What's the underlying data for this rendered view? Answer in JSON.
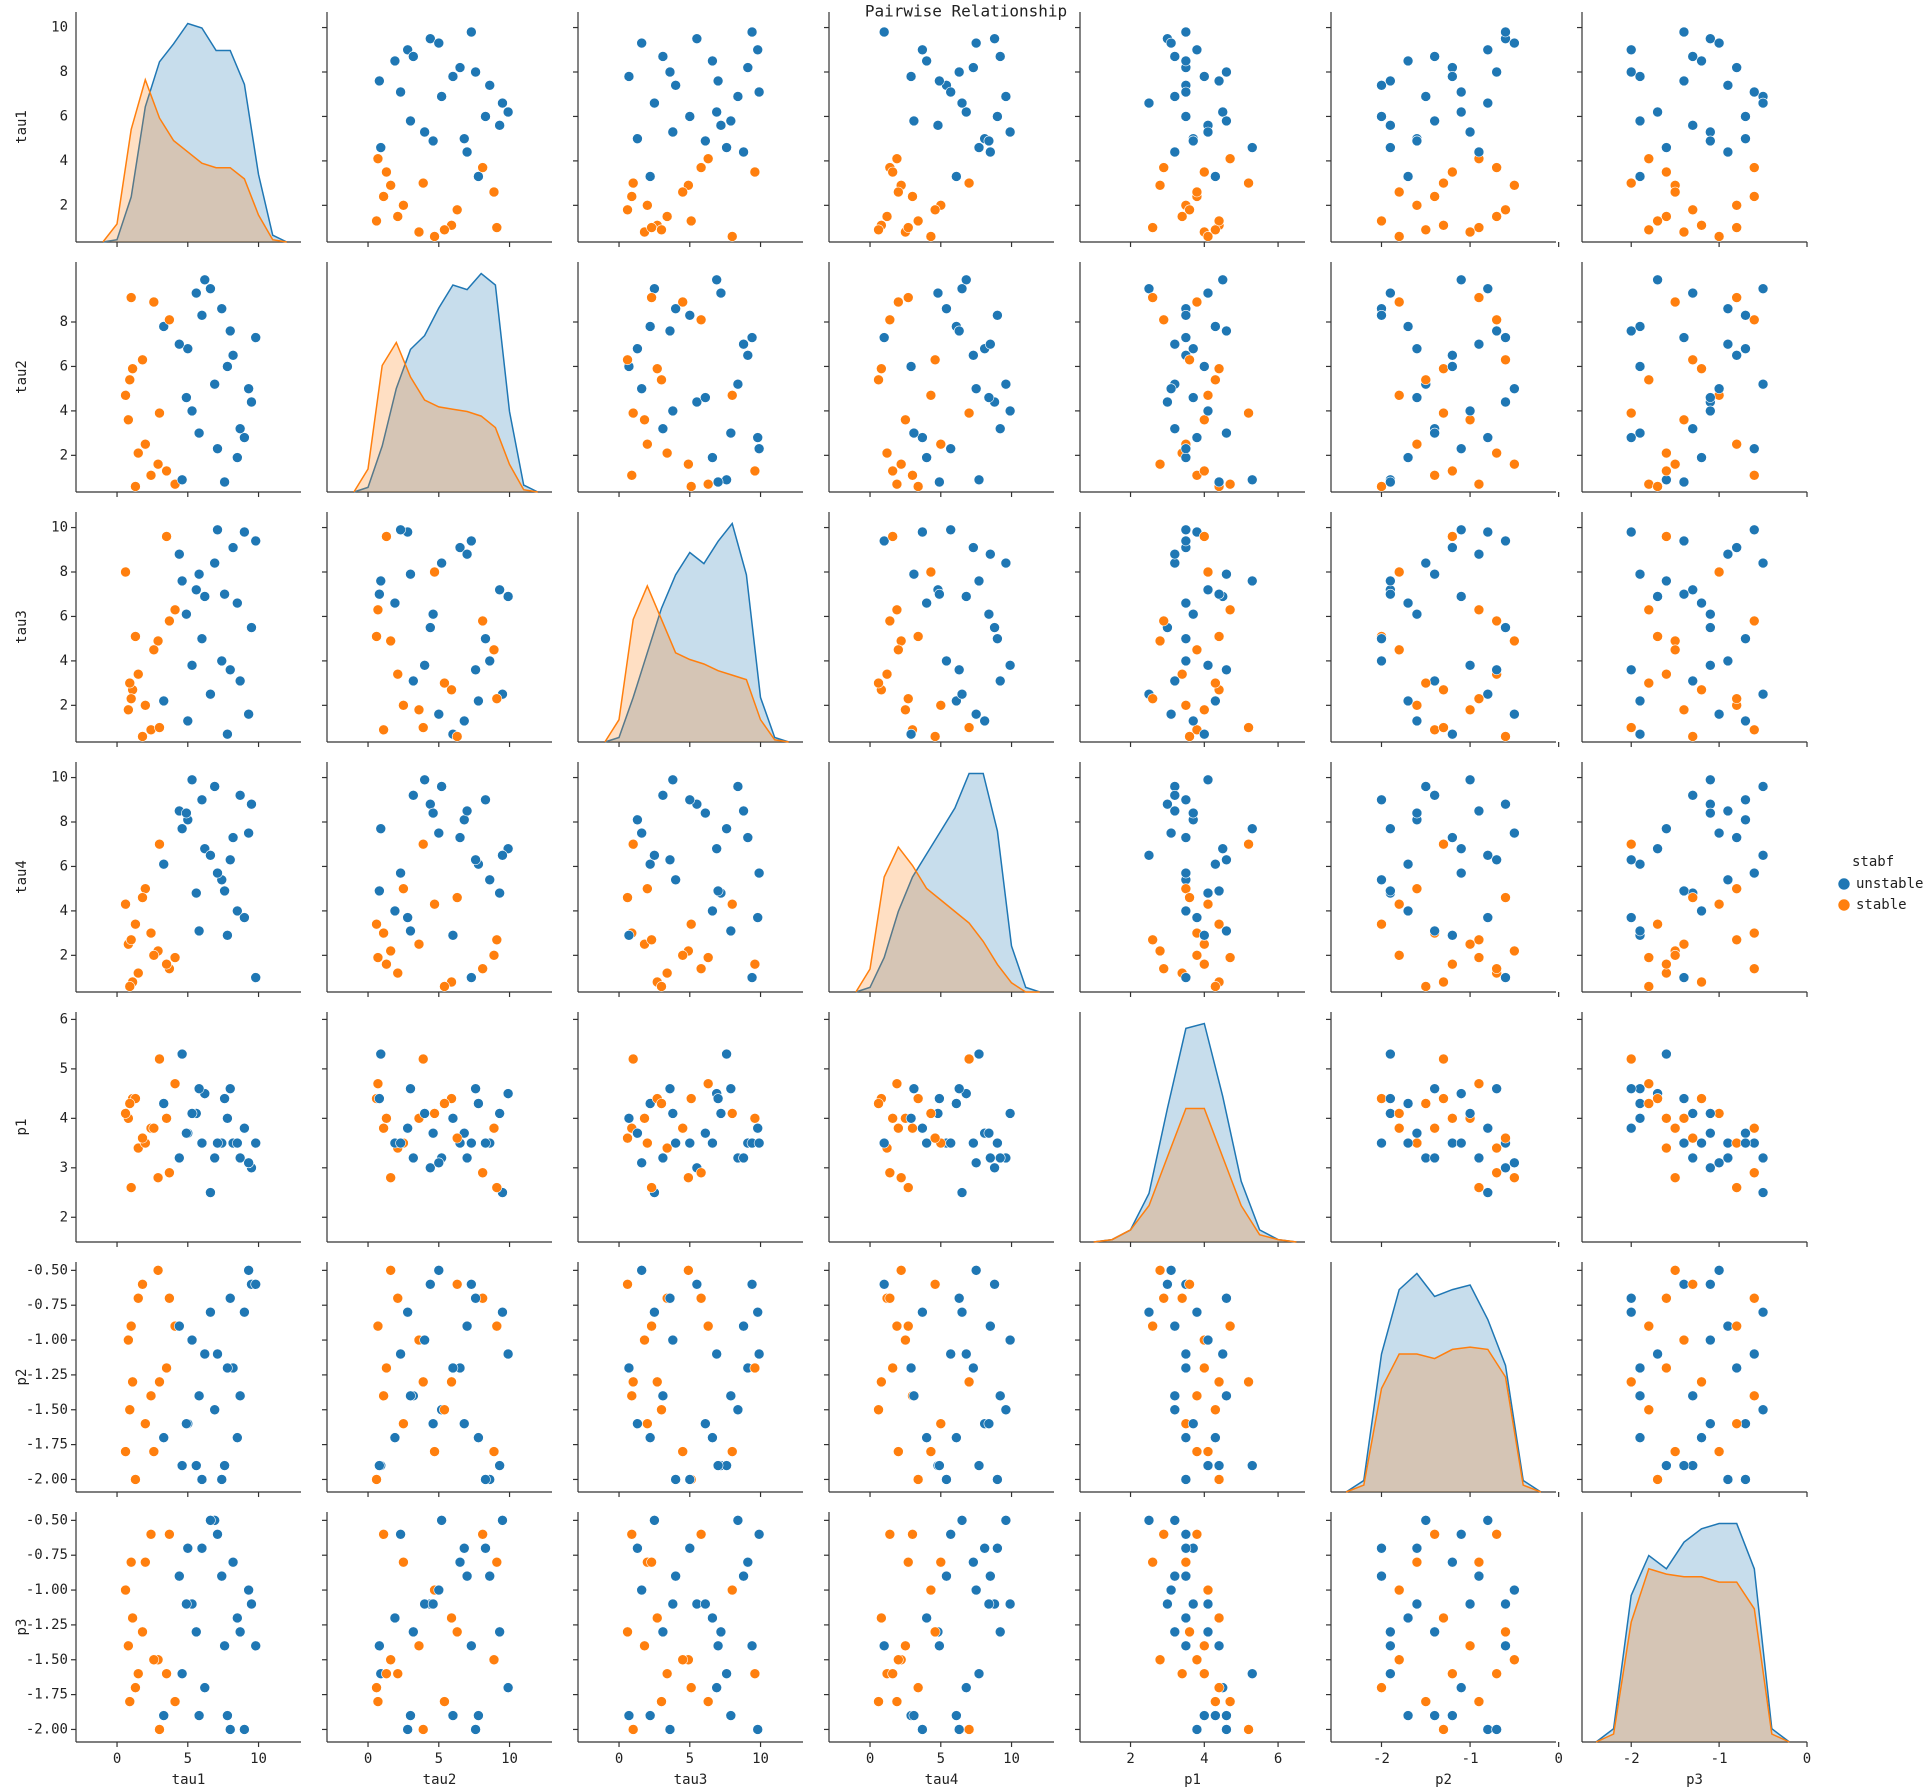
{
  "chart_data": {
    "type": "pairplot",
    "title": "Pairwise Relationship",
    "legend_title": "stabf",
    "series": [
      {
        "name": "unstable",
        "color": "#1f77b4"
      },
      {
        "name": "stable",
        "color": "#ff7f0e"
      }
    ],
    "stabf": [
      "unstable",
      "stable",
      "unstable",
      "stable",
      "unstable",
      "unstable",
      "stable",
      "unstable",
      "stable",
      "unstable",
      "stable",
      "unstable",
      "unstable",
      "stable",
      "unstable",
      "stable",
      "unstable",
      "stable",
      "unstable",
      "unstable",
      "stable",
      "unstable",
      "unstable",
      "stable",
      "unstable",
      "stable",
      "unstable",
      "unstable",
      "stable",
      "unstable",
      "stable",
      "unstable",
      "unstable",
      "stable",
      "unstable",
      "stable",
      "unstable",
      "unstable",
      "stable",
      "unstable"
    ],
    "variables": [
      {
        "name": "tau1",
        "xlim": [
          -2.9,
          13
        ],
        "xticks": [
          0,
          5,
          10
        ],
        "ylim": [
          0.35,
          10.7
        ],
        "yticks": [
          2,
          4,
          6,
          8,
          10
        ],
        "values": [
          8.2,
          1.5,
          5.6,
          2.4,
          9.5,
          3.3,
          0.8,
          6.9,
          4.1,
          7.4,
          1.1,
          9.0,
          5.0,
          2.9,
          6.2,
          0.6,
          8.7,
          3.7,
          4.6,
          7.8,
          2.0,
          9.8,
          5.3,
          1.3,
          6.6,
          3.0,
          8.5,
          4.4,
          0.9,
          7.1,
          2.6,
          9.3,
          5.8,
          1.8,
          6.0,
          3.5,
          8.0,
          4.9,
          1.0,
          7.6
        ],
        "kde": {
          "x": [
            -1,
            0,
            1,
            2,
            3,
            4,
            5,
            6,
            7,
            8,
            9,
            10,
            11,
            12
          ],
          "values": [
            [
              0,
              0.01,
              0.2,
              0.6,
              0.8,
              0.88,
              0.97,
              0.95,
              0.85,
              0.85,
              0.7,
              0.3,
              0.03,
              0
            ],
            [
              0,
              0.08,
              0.5,
              0.72,
              0.55,
              0.45,
              0.4,
              0.35,
              0.33,
              0.33,
              0.28,
              0.12,
              0.01,
              0
            ]
          ]
        }
      },
      {
        "name": "tau2",
        "xlim": [
          -2.9,
          13
        ],
        "xticks": [
          0,
          5,
          10
        ],
        "ylim": [
          0.35,
          10.7
        ],
        "yticks": [
          2,
          4,
          6,
          8
        ],
        "values": [
          6.5,
          2.1,
          9.3,
          1.1,
          4.4,
          7.8,
          3.6,
          5.2,
          0.7,
          8.6,
          5.9,
          2.8,
          6.8,
          1.6,
          9.9,
          4.7,
          3.2,
          8.1,
          0.9,
          6.0,
          2.5,
          7.3,
          4.0,
          0.6,
          9.5,
          3.9,
          1.9,
          7.0,
          5.4,
          2.3,
          8.9,
          5.0,
          3.0,
          6.3,
          8.3,
          1.3,
          7.6,
          4.6,
          9.1,
          0.8
        ],
        "kde": {
          "x": [
            -1,
            0,
            1,
            2,
            3,
            4,
            5,
            6,
            7,
            8,
            9,
            10,
            11,
            12
          ],
          "values": [
            [
              0,
              0.02,
              0.2,
              0.45,
              0.62,
              0.68,
              0.8,
              0.9,
              0.88,
              0.95,
              0.9,
              0.35,
              0.03,
              0
            ],
            [
              0,
              0.1,
              0.55,
              0.65,
              0.5,
              0.4,
              0.37,
              0.36,
              0.35,
              0.33,
              0.28,
              0.12,
              0.01,
              0
            ]
          ]
        }
      },
      {
        "name": "tau3",
        "xlim": [
          -2.9,
          13
        ],
        "xticks": [
          0,
          5,
          10
        ],
        "ylim": [
          0.35,
          10.7
        ],
        "yticks": [
          2,
          4,
          6,
          8,
          10
        ],
        "values": [
          9.1,
          3.4,
          7.2,
          0.9,
          5.5,
          2.2,
          1.8,
          8.4,
          6.3,
          4.0,
          2.7,
          9.8,
          1.3,
          4.9,
          6.9,
          8.0,
          3.1,
          5.8,
          7.6,
          0.7,
          2.0,
          9.4,
          3.8,
          5.1,
          2.5,
          1.0,
          6.6,
          8.8,
          3.0,
          9.9,
          4.5,
          1.6,
          7.9,
          0.6,
          5.0,
          9.6,
          3.6,
          6.1,
          2.3,
          7.0
        ],
        "kde": {
          "x": [
            -1,
            0,
            1,
            2,
            3,
            4,
            5,
            6,
            7,
            8,
            9,
            10,
            11,
            12
          ],
          "values": [
            [
              0,
              0.02,
              0.2,
              0.4,
              0.6,
              0.75,
              0.85,
              0.8,
              0.9,
              0.98,
              0.75,
              0.2,
              0.02,
              0
            ],
            [
              0,
              0.1,
              0.55,
              0.7,
              0.55,
              0.4,
              0.37,
              0.35,
              0.32,
              0.3,
              0.28,
              0.1,
              0.01,
              0
            ]
          ]
        }
      },
      {
        "name": "tau4",
        "xlim": [
          -2.9,
          13
        ],
        "xticks": [
          0,
          5,
          10
        ],
        "ylim": [
          0.35,
          10.7
        ],
        "yticks": [
          2,
          4,
          6,
          8,
          10
        ],
        "values": [
          7.3,
          1.2,
          4.8,
          3.0,
          8.8,
          6.1,
          2.5,
          9.6,
          1.9,
          5.4,
          0.8,
          3.7,
          8.1,
          2.2,
          6.8,
          4.3,
          9.2,
          1.4,
          7.7,
          2.9,
          5.0,
          1.0,
          9.9,
          3.4,
          6.5,
          7.0,
          4.0,
          8.5,
          0.6,
          5.7,
          2.0,
          7.5,
          3.1,
          4.6,
          9.0,
          1.6,
          6.3,
          8.4,
          2.7,
          4.9
        ],
        "kde": {
          "x": [
            -1,
            0,
            1,
            2,
            3,
            4,
            5,
            6,
            7,
            8,
            9,
            10,
            11,
            12
          ],
          "values": [
            [
              0,
              0.02,
              0.15,
              0.35,
              0.5,
              0.6,
              0.7,
              0.8,
              0.95,
              0.95,
              0.7,
              0.2,
              0.02,
              0
            ],
            [
              0,
              0.1,
              0.5,
              0.63,
              0.55,
              0.45,
              0.4,
              0.35,
              0.3,
              0.22,
              0.12,
              0.04,
              0,
              0
            ]
          ]
        }
      },
      {
        "name": "p1",
        "xlim": [
          0.63,
          6.73
        ],
        "xticks": [
          2,
          4,
          6
        ],
        "ylim": [
          1.5,
          6.15
        ],
        "yticks": [
          2,
          3,
          4,
          5,
          6
        ],
        "values": [
          3.5,
          3.4,
          4.1,
          3.8,
          3.0,
          4.3,
          4.0,
          3.2,
          4.7,
          3.5,
          4.4,
          3.8,
          3.7,
          2.8,
          4.5,
          4.1,
          3.2,
          2.9,
          5.3,
          4.0,
          3.5,
          3.5,
          4.1,
          4.4,
          2.5,
          5.2,
          3.5,
          3.2,
          4.3,
          3.5,
          3.8,
          3.1,
          4.6,
          3.6,
          3.5,
          4.0,
          4.6,
          3.7,
          2.6,
          4.4
        ],
        "kde": {
          "x": [
            1,
            1.5,
            2,
            2.5,
            3,
            3.5,
            4,
            4.5,
            5,
            5.5,
            6,
            6.5
          ],
          "values": [
            [
              0,
              0.01,
              0.05,
              0.2,
              0.55,
              0.88,
              0.9,
              0.6,
              0.25,
              0.05,
              0.01,
              0
            ],
            [
              0,
              0.01,
              0.05,
              0.15,
              0.35,
              0.55,
              0.55,
              0.35,
              0.15,
              0.03,
              0.01,
              0
            ]
          ]
        }
      },
      {
        "name": "p2",
        "xlim": [
          -2.57,
          -0.03
        ],
        "xticks": [
          -2,
          -1,
          0
        ],
        "ylim": [
          -2.09,
          -0.44
        ],
        "yticks": [
          {
            "value": -0.5,
            "label": "-0.50"
          },
          -0.75,
          {
            "value": -1,
            "label": "-1.00"
          },
          -1.25,
          {
            "value": -1.5,
            "label": "-1.50"
          },
          -1.75,
          {
            "value": -2,
            "label": "-2.00"
          }
        ],
        "values": [
          -1.2,
          -0.7,
          -1.9,
          -1.4,
          -0.6,
          -1.7,
          -1.0,
          -1.5,
          -0.9,
          -2.0,
          -1.3,
          -0.8,
          -1.6,
          -0.5,
          -1.1,
          -1.8,
          -1.4,
          -0.7,
          -1.9,
          -1.2,
          -1.6,
          -0.6,
          -1.0,
          -2.0,
          -0.8,
          -1.3,
          -1.7,
          -0.9,
          -1.5,
          -1.1,
          -1.8,
          -0.5,
          -1.4,
          -0.6,
          -2.0,
          -1.2,
          -0.7,
          -1.6,
          -0.9,
          -1.9
        ],
        "kde": {
          "x": [
            -2.4,
            -2.2,
            -2.0,
            -1.8,
            -1.6,
            -1.4,
            -1.2,
            -1.0,
            -0.8,
            -0.6,
            -0.4,
            -0.2
          ],
          "values": [
            [
              0,
              0.05,
              0.6,
              0.88,
              0.95,
              0.85,
              0.88,
              0.9,
              0.75,
              0.55,
              0.05,
              0
            ],
            [
              0,
              0.03,
              0.45,
              0.6,
              0.6,
              0.58,
              0.62,
              0.63,
              0.62,
              0.5,
              0.03,
              0
            ]
          ]
        }
      },
      {
        "name": "p3",
        "xlim": [
          -2.56,
          0
        ],
        "xticks": [
          -2,
          -1,
          0
        ],
        "ylim": [
          -2.09,
          -0.44
        ],
        "yticks": [
          {
            "value": -0.5,
            "label": "-0.50"
          },
          -0.75,
          {
            "value": -1,
            "label": "-1.00"
          },
          -1.25,
          {
            "value": -1.5,
            "label": "-1.50"
          },
          -1.75,
          {
            "value": -2,
            "label": "-2.00"
          }
        ],
        "values": [
          -0.8,
          -1.6,
          -1.3,
          -0.6,
          -1.1,
          -1.9,
          -1.4,
          -0.5,
          -1.8,
          -0.9,
          -1.2,
          -2.0,
          -0.7,
          -1.5,
          -1.7,
          -1.0,
          -1.3,
          -0.6,
          -1.6,
          -1.9,
          -0.8,
          -1.4,
          -1.1,
          -1.7,
          -0.5,
          -2.0,
          -1.2,
          -0.9,
          -1.8,
          -0.6,
          -1.5,
          -1.0,
          -1.9,
          -1.3,
          -0.7,
          -1.6,
          -2.0,
          -1.1,
          -0.8,
          -1.4
        ],
        "kde": {
          "x": [
            -2.4,
            -2.2,
            -2.0,
            -1.8,
            -1.6,
            -1.4,
            -1.2,
            -1.0,
            -0.8,
            -0.6,
            -0.4,
            -0.2
          ],
          "values": [
            [
              0,
              0.05,
              0.55,
              0.7,
              0.65,
              0.75,
              0.8,
              0.82,
              0.82,
              0.65,
              0.05,
              0
            ],
            [
              0,
              0.03,
              0.45,
              0.65,
              0.63,
              0.62,
              0.62,
              0.6,
              0.6,
              0.5,
              0.03,
              0
            ]
          ]
        }
      }
    ]
  }
}
